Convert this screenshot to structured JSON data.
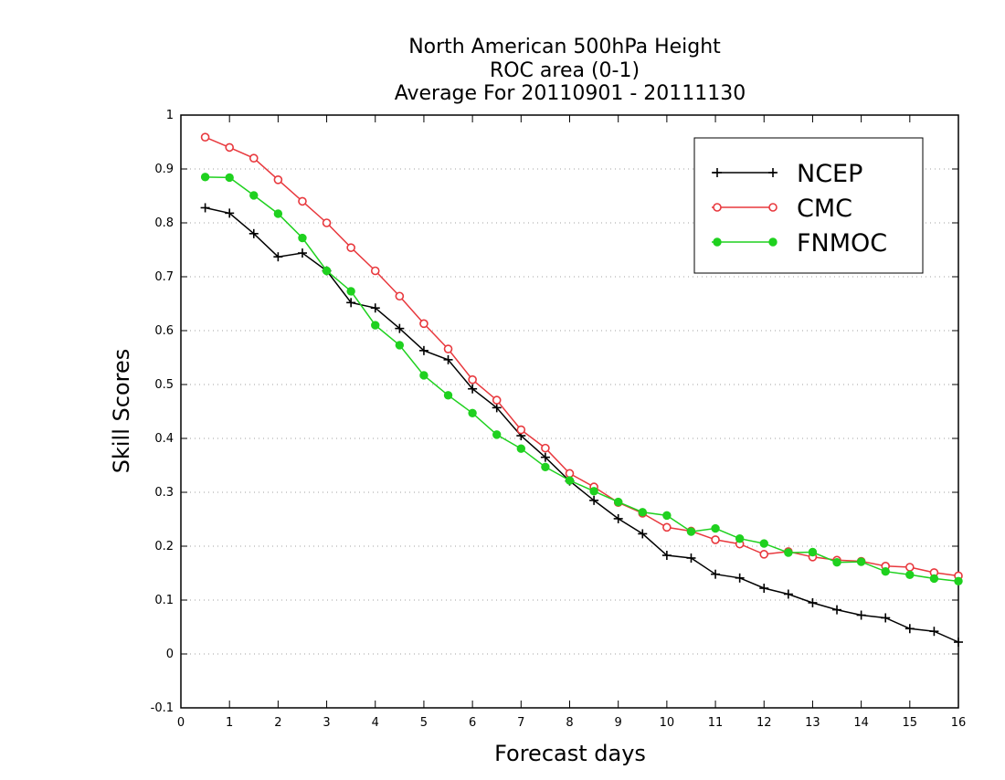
{
  "chart_data": {
    "type": "line",
    "title": [
      "North American 500hPa Height",
      "ROC area (0-1)",
      "Average For 20110901 - 20111130"
    ],
    "xlabel": "Forecast days",
    "ylabel": "Skill Scores",
    "xlim": [
      0,
      16
    ],
    "ylim": [
      -0.1,
      1
    ],
    "xticks": [
      0,
      1,
      2,
      3,
      4,
      5,
      6,
      7,
      8,
      9,
      10,
      11,
      12,
      13,
      14,
      15,
      16
    ],
    "yticks": [
      -0.1,
      0,
      0.1,
      0.2,
      0.3,
      0.4,
      0.5,
      0.6,
      0.7,
      0.8,
      0.9,
      1
    ],
    "ytick_labels": [
      "-0.1",
      "0",
      "0.1",
      "0.2",
      "0.3",
      "0.4",
      "0.5",
      "0.6",
      "0.7",
      "0.8",
      "0.9",
      "1"
    ],
    "xtick_labels": [
      "0",
      "1",
      "2",
      "3",
      "4",
      "5",
      "6",
      "7",
      "8",
      "9",
      "10",
      "11",
      "12",
      "13",
      "14",
      "15",
      "16"
    ],
    "grid": "horizontal dotted",
    "legend_position": "top-right",
    "x": [
      0.5,
      1,
      1.5,
      2,
      2.5,
      3,
      3.5,
      4,
      4.5,
      5,
      5.5,
      6,
      6.5,
      7,
      7.5,
      8,
      8.5,
      9,
      9.5,
      10,
      10.5,
      11,
      11.5,
      12,
      12.5,
      13,
      13.5,
      14,
      14.5,
      15,
      15.5,
      16
    ],
    "series": [
      {
        "name": "NCEP",
        "color": "#000000",
        "marker": "plus",
        "values": [
          0.828,
          0.818,
          0.78,
          0.737,
          0.744,
          0.711,
          0.652,
          0.642,
          0.604,
          0.563,
          0.546,
          0.492,
          0.457,
          0.405,
          0.365,
          0.321,
          0.285,
          0.251,
          0.223,
          0.183,
          0.178,
          0.148,
          0.141,
          0.122,
          0.111,
          0.095,
          0.082,
          0.072,
          0.067,
          0.047,
          0.042,
          0.022
        ]
      },
      {
        "name": "CMC",
        "color": "#e8383d",
        "marker": "open-circle",
        "values": [
          0.959,
          0.94,
          0.92,
          0.88,
          0.84,
          0.8,
          0.754,
          0.711,
          0.664,
          0.613,
          0.566,
          0.509,
          0.471,
          0.416,
          0.382,
          0.335,
          0.31,
          0.281,
          0.261,
          0.235,
          0.228,
          0.212,
          0.204,
          0.185,
          0.19,
          0.18,
          0.174,
          0.172,
          0.163,
          0.161,
          0.151,
          0.145
        ]
      },
      {
        "name": "FNMOC",
        "color": "#1fd11f",
        "marker": "filled-circle",
        "values": [
          0.885,
          0.884,
          0.851,
          0.817,
          0.772,
          0.711,
          0.673,
          0.61,
          0.573,
          0.517,
          0.48,
          0.447,
          0.407,
          0.381,
          0.347,
          0.322,
          0.302,
          0.282,
          0.263,
          0.257,
          0.227,
          0.233,
          0.214,
          0.205,
          0.188,
          0.189,
          0.17,
          0.171,
          0.153,
          0.147,
          0.14,
          0.135
        ]
      }
    ]
  }
}
